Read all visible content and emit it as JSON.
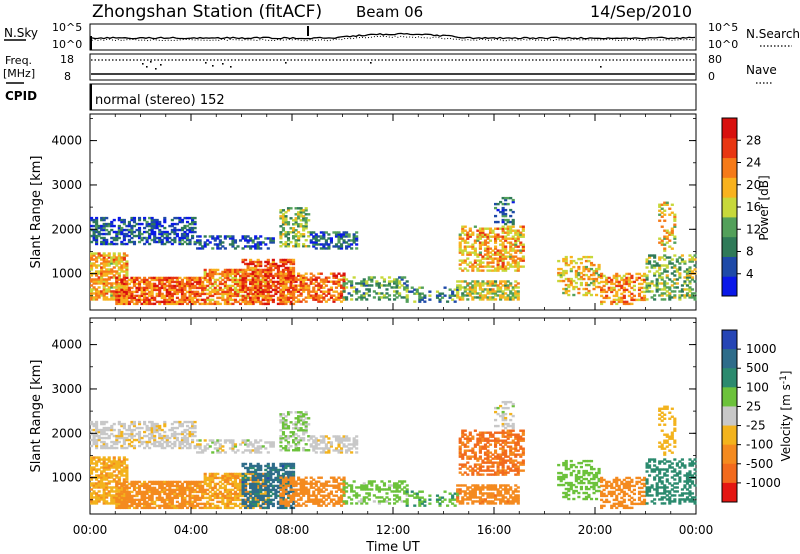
{
  "header": {
    "station": "Zhongshan Station (fitACF)",
    "beam": "Beam 06",
    "date": "14/Sep/2010"
  },
  "top_panels": {
    "nsky_label": "N.Sky",
    "nsky_ticks": [
      "10^5",
      "10^0"
    ],
    "nsearch_label": "N.Search",
    "nsearch_ticks": [
      "10^5",
      "10^0"
    ],
    "freq_label": "Freq.",
    "freq_unit": "[MHz]",
    "freq_ticks": [
      "18",
      "8"
    ],
    "nave_label": "Nave",
    "nave_ticks": [
      "80",
      "0"
    ],
    "cpid_label": "CPID",
    "cpid_text": "normal (stereo) 152"
  },
  "colors": {
    "power_scale": [
      "#0a18e8",
      "#1e4aa8",
      "#2f7a58",
      "#53a05a",
      "#c7d83a",
      "#f8b21e",
      "#f57a18",
      "#e83612",
      "#d8100e"
    ],
    "velocity_scale": [
      "#2645b5",
      "#2e6c8a",
      "#2b8a6e",
      "#6cc23b",
      "#c8c8c8",
      "#f3b31d",
      "#f48a1f",
      "#f26a1d",
      "#e41612"
    ]
  },
  "chart_data": [
    {
      "type": "heatmap",
      "title": "",
      "xlabel": "",
      "ylabel": "Slant Range [km]",
      "x_ticks": [
        "00:00",
        "04:00",
        "08:00",
        "12:00",
        "16:00",
        "20:00",
        "00:00"
      ],
      "xlim": [
        0,
        24
      ],
      "y_ticks": [
        "1000",
        "2000",
        "3000",
        "4000"
      ],
      "ylim": [
        180,
        4600
      ],
      "colorbar_label": "Power [dB]",
      "colorbar_ticks": [
        "4",
        "8",
        "12",
        "16",
        "20",
        "24",
        "28"
      ],
      "clim": [
        0,
        32
      ]
    },
    {
      "type": "heatmap",
      "title": "",
      "xlabel": "Time UT",
      "ylabel": "Slant Range [km]",
      "x_ticks": [
        "00:00",
        "04:00",
        "08:00",
        "12:00",
        "16:00",
        "20:00",
        "00:00"
      ],
      "xlim": [
        0,
        24
      ],
      "y_ticks": [
        "1000",
        "2000",
        "3000",
        "4000"
      ],
      "ylim": [
        180,
        4600
      ],
      "colorbar_label": "Velocity [m s",
      "colorbar_label_sup": "-1",
      "colorbar_label_end": "]",
      "colorbar_ticks": [
        "1000",
        "500",
        "100",
        "25",
        "-25",
        "-100",
        "-500",
        "-1000"
      ]
    }
  ]
}
